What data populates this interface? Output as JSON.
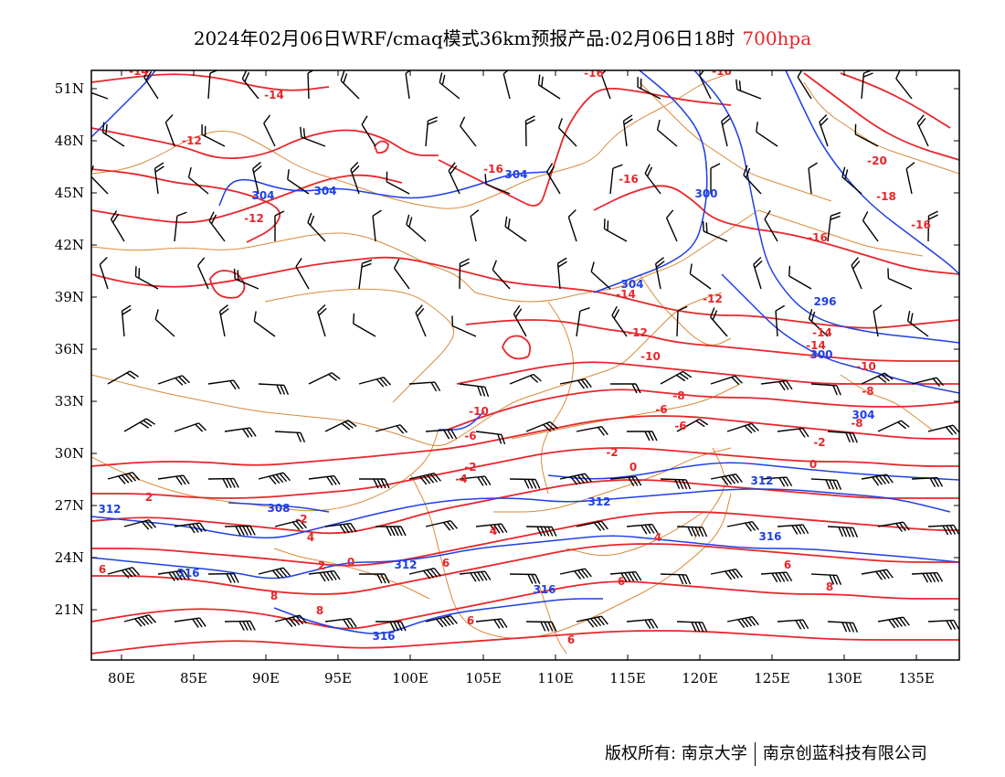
{
  "title": {
    "main": "2024年02月06日WRF/cmaq模式36km预报产品:02月06日18时",
    "level": "700hpa",
    "level_color": "#e8262a"
  },
  "axes": {
    "x_ticks": [
      "80E",
      "85E",
      "90E",
      "95E",
      "100E",
      "105E",
      "110E",
      "115E",
      "120E",
      "125E",
      "130E",
      "135E"
    ],
    "y_ticks": [
      "51N",
      "48N",
      "45N",
      "42N",
      "39N",
      "36N",
      "33N",
      "30N",
      "27N",
      "24N",
      "21N"
    ]
  },
  "colors": {
    "temperature_contour": "#e8262a",
    "height_contour": "#1f3fe6",
    "boundary": "#d98a3a",
    "wind_barb": "#000000"
  },
  "temperature_labels": [
    "-14",
    "-14",
    "-12",
    "-12",
    "-16",
    "-16",
    "-16",
    "-16",
    "-20",
    "-18",
    "-16",
    "-16",
    "-14",
    "-14",
    "-12",
    "-14",
    "-10",
    "-12",
    "-10",
    "-10",
    "-8",
    "-8",
    "-6",
    "-8",
    "-6",
    "-6",
    "-4",
    "-2",
    "-2",
    "0",
    "0",
    "-2",
    "-2",
    "2",
    "0",
    "4",
    "2",
    "4",
    "6",
    "6",
    "6",
    "8",
    "6",
    "8",
    "8",
    "4",
    "6",
    "6"
  ],
  "height_labels": [
    "304",
    "304",
    "304",
    "300",
    "304",
    "296",
    "300",
    "304",
    "312",
    "312",
    "312",
    "308",
    "312",
    "316",
    "316",
    "316",
    "316"
  ],
  "legend_icons": [
    "wind-barb-icon"
  ],
  "copyright": {
    "left": "版权所有: 南京大学",
    "right": "南京创蓝科技有限公司"
  }
}
